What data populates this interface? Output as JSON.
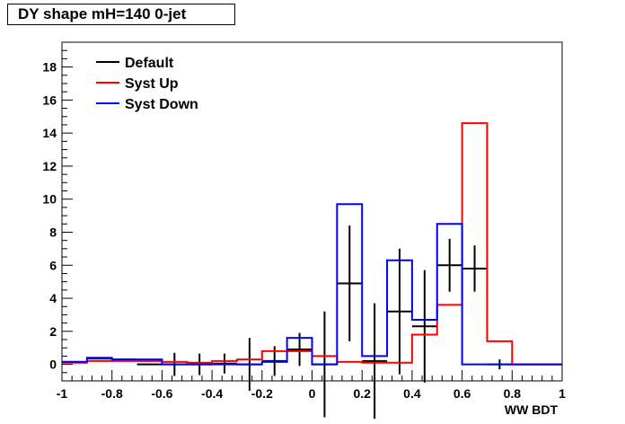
{
  "chart_data": {
    "type": "line",
    "title": "DY shape mH=140 0-jet",
    "xlabel": "WW BDT",
    "ylabel": "",
    "xlim": [
      -1,
      1
    ],
    "ylim": [
      -1,
      19.5
    ],
    "x_ticks": [
      -1,
      -0.8,
      -0.6,
      -0.4,
      -0.2,
      0,
      0.2,
      0.4,
      0.6,
      0.8,
      1
    ],
    "x_tick_labels": [
      "-1",
      "-0.8",
      "-0.6",
      "-0.4",
      "-0.2",
      "0",
      "0.2",
      "0.4",
      "0.6",
      "0.8",
      "1"
    ],
    "y_ticks": [
      0,
      2,
      4,
      6,
      8,
      10,
      12,
      14,
      16,
      18
    ],
    "y_tick_labels": [
      "0",
      "2",
      "4",
      "6",
      "8",
      "10",
      "12",
      "14",
      "16",
      "18"
    ],
    "bin_edges": [
      -1.0,
      -0.9,
      -0.8,
      -0.7,
      -0.6,
      -0.5,
      -0.4,
      -0.3,
      -0.2,
      -0.1,
      0.0,
      0.1,
      0.2,
      0.3,
      0.4,
      0.5,
      0.6,
      0.7,
      0.8,
      0.9,
      1.0
    ],
    "series": [
      {
        "name": "Default",
        "color": "#000000",
        "style": "errorbar",
        "values": [
          0.15,
          0.35,
          0.3,
          0.0,
          0.0,
          0.0,
          0.05,
          0.0,
          0.2,
          0.9,
          0.0,
          4.9,
          0.2,
          3.2,
          2.3,
          6.0,
          5.8,
          0.0,
          0.0,
          0.0
        ],
        "errors": [
          0.0,
          0.0,
          0.0,
          0.0,
          0.7,
          0.65,
          0.6,
          1.6,
          0.9,
          1.0,
          3.2,
          3.5,
          3.5,
          3.8,
          3.4,
          1.6,
          1.4,
          0.3,
          0.0,
          0.0
        ]
      },
      {
        "name": "Syst Up",
        "color": "#ff0000",
        "style": "step",
        "values": [
          0.1,
          0.2,
          0.2,
          0.2,
          0.15,
          0.1,
          0.2,
          0.3,
          0.8,
          0.8,
          0.5,
          0.15,
          0.1,
          0.1,
          1.8,
          3.6,
          14.6,
          1.4,
          0.0,
          0.0
        ]
      },
      {
        "name": "Syst Down",
        "color": "#0000ff",
        "style": "step",
        "values": [
          0.15,
          0.4,
          0.3,
          0.3,
          0.0,
          0.0,
          0.0,
          0.0,
          0.15,
          1.6,
          0.0,
          9.7,
          0.5,
          6.3,
          2.7,
          8.5,
          0.0,
          0.0,
          0.0,
          0.0
        ]
      }
    ],
    "grid": false,
    "legend_position": "top-left"
  }
}
